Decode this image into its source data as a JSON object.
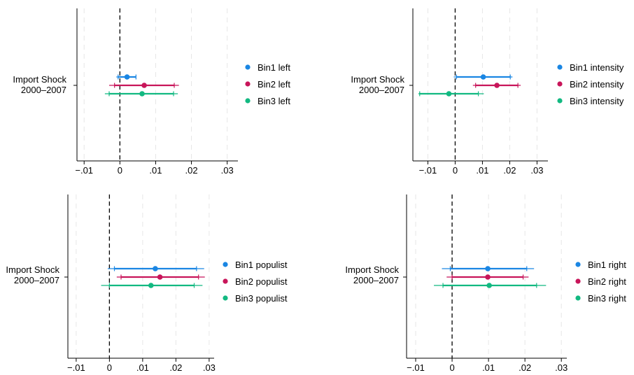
{
  "colors": {
    "bin1": "#1a86e3",
    "bin2": "#c8155a",
    "bin3": "#12b981",
    "zero_line": "#000000",
    "grid": "#e6e6e6"
  },
  "chart_data": [
    {
      "type": "scatter",
      "subtype": "coefficient-plot",
      "title": "",
      "xlabel": "",
      "ylabel": "",
      "y_label_lines": [
        "Import Shock",
        "2000–2007"
      ],
      "xlim": [
        -0.012,
        0.033
      ],
      "xticks": [
        -0.01,
        0,
        0.01,
        0.02,
        0.03
      ],
      "xtick_labels": [
        "−.01",
        "0",
        ".01",
        ".02",
        ".03"
      ],
      "grid": true,
      "legend_position": "right",
      "series": [
        {
          "name": "Bin1 left",
          "color": "#1a86e3",
          "estimate": 0.002,
          "ci90": [
            -0.0005,
            0.0045
          ],
          "ci95": [
            -0.001,
            0.0045
          ]
        },
        {
          "name": "Bin2 left",
          "color": "#c8155a",
          "estimate": 0.0068,
          "ci90": [
            -0.0015,
            0.0152
          ],
          "ci95": [
            -0.003,
            0.0165
          ]
        },
        {
          "name": "Bin3 left",
          "color": "#12b981",
          "estimate": 0.0062,
          "ci90": [
            -0.003,
            0.015
          ],
          "ci95": [
            -0.0042,
            0.0162
          ]
        }
      ]
    },
    {
      "type": "scatter",
      "subtype": "coefficient-plot",
      "title": "",
      "xlabel": "",
      "ylabel": "",
      "y_label_lines": [
        "Import Shock",
        "2000–2007"
      ],
      "xlim": [
        -0.0155,
        0.034
      ],
      "xticks": [
        -0.01,
        0,
        0.01,
        0.02,
        0.03
      ],
      "xtick_labels": [
        "−.01",
        "0",
        ".01",
        ".02",
        ".03"
      ],
      "grid": true,
      "legend_position": "right",
      "series": [
        {
          "name": "Bin1 intensity",
          "color": "#1a86e3",
          "estimate": 0.0103,
          "ci90": [
            0.0005,
            0.0202
          ],
          "ci95": [
            -0.0005,
            0.021
          ]
        },
        {
          "name": "Bin2 intensity",
          "color": "#c8155a",
          "estimate": 0.0153,
          "ci90": [
            0.0075,
            0.023
          ],
          "ci95": [
            0.0065,
            0.024
          ]
        },
        {
          "name": "Bin3 intensity",
          "color": "#12b981",
          "estimate": -0.0023,
          "ci90": [
            -0.013,
            0.0085
          ],
          "ci95": [
            -0.0135,
            0.0105
          ]
        }
      ]
    },
    {
      "type": "scatter",
      "subtype": "coefficient-plot",
      "title": "",
      "xlabel": "",
      "ylabel": "",
      "y_label_lines": [
        "Import Shock",
        "2000–2007"
      ],
      "xlim": [
        -0.0125,
        0.0315
      ],
      "xticks": [
        -0.01,
        0,
        0.01,
        0.02,
        0.03
      ],
      "xtick_labels": [
        "−.01",
        "0",
        ".01",
        ".02",
        ".03"
      ],
      "grid": true,
      "legend_position": "right",
      "series": [
        {
          "name": "Bin1 populist",
          "color": "#1a86e3",
          "estimate": 0.0138,
          "ci90": [
            0.0015,
            0.0262
          ],
          "ci95": [
            -0.0005,
            0.0285
          ]
        },
        {
          "name": "Bin2 populist",
          "color": "#c8155a",
          "estimate": 0.0152,
          "ci90": [
            0.0035,
            0.0268
          ],
          "ci95": [
            0.0022,
            0.0287
          ]
        },
        {
          "name": "Bin3 populist",
          "color": "#12b981",
          "estimate": 0.0125,
          "ci90": [
            0.0,
            0.0255
          ],
          "ci95": [
            -0.0025,
            0.028
          ]
        }
      ]
    },
    {
      "type": "scatter",
      "subtype": "coefficient-plot",
      "title": "",
      "xlabel": "",
      "ylabel": "",
      "y_label_lines": [
        "Import Shock",
        "2000–2007"
      ],
      "xlim": [
        -0.0125,
        0.0315
      ],
      "xticks": [
        -0.01,
        0,
        0.01,
        0.02,
        0.03
      ],
      "xtick_labels": [
        "−.01",
        "0",
        ".01",
        ".02",
        ".03"
      ],
      "grid": true,
      "legend_position": "right",
      "series": [
        {
          "name": "Bin1 right",
          "color": "#1a86e3",
          "estimate": 0.0098,
          "ci90": [
            -0.0005,
            0.0205
          ],
          "ci95": [
            -0.0028,
            0.0225
          ]
        },
        {
          "name": "Bin2 right",
          "color": "#c8155a",
          "estimate": 0.0098,
          "ci90": [
            0.0,
            0.0195
          ],
          "ci95": [
            -0.0015,
            0.021
          ]
        },
        {
          "name": "Bin3 right",
          "color": "#12b981",
          "estimate": 0.0102,
          "ci90": [
            -0.0025,
            0.0232
          ],
          "ci95": [
            -0.005,
            0.0258
          ]
        }
      ]
    }
  ]
}
